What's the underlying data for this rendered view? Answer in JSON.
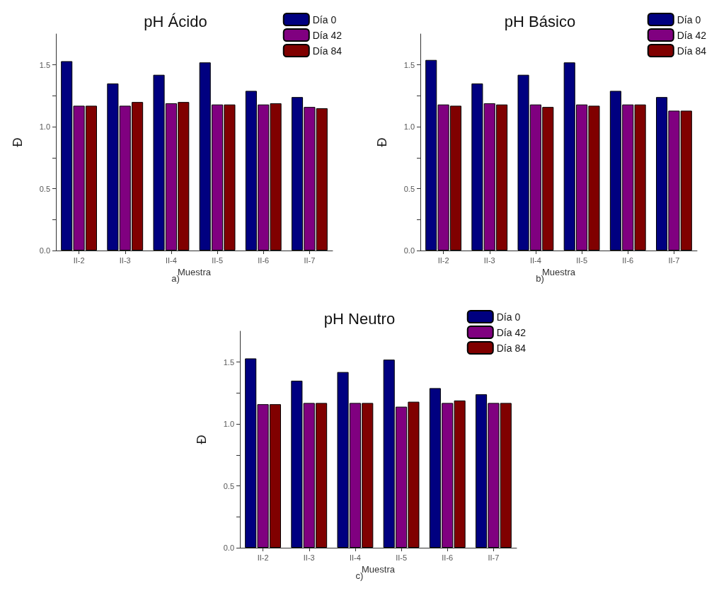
{
  "chart_data": [
    {
      "type": "bar",
      "title": "pH Ácido",
      "xlabel": "Muestra",
      "ylabel": "Đ",
      "annotations": [
        "a)"
      ],
      "categories": [
        "II-2",
        "II-3",
        "II-4",
        "II-5",
        "II-6",
        "II-7"
      ],
      "ylim": [
        0,
        1.75
      ],
      "yticks": [
        {
          "value": 0,
          "label": "0.0"
        },
        {
          "value": 0.25,
          "label": null
        },
        {
          "value": 0.5,
          "label": "0.5"
        },
        {
          "value": 0.75,
          "label": null
        },
        {
          "value": 1,
          "label": "1.0"
        },
        {
          "value": 1.25,
          "label": null
        },
        {
          "value": 1.5,
          "label": "1.5"
        }
      ],
      "grid": false,
      "legend": "top right",
      "series": [
        {
          "name": "Día 0",
          "color": "#000080",
          "values": [
            1.53,
            1.35,
            1.42,
            1.52,
            1.29,
            1.24
          ]
        },
        {
          "name": "Día 42",
          "color": "#800080",
          "values": [
            1.17,
            1.17,
            1.19,
            1.18,
            1.18,
            1.16
          ]
        },
        {
          "name": "Día 84",
          "color": "#800000",
          "values": [
            1.17,
            1.2,
            1.2,
            1.18,
            1.19,
            1.15
          ]
        }
      ]
    },
    {
      "type": "bar",
      "title": "pH Básico",
      "xlabel": "Muestra",
      "ylabel": "Đ",
      "annotations": [
        "b)"
      ],
      "categories": [
        "II-2",
        "II-3",
        "II-4",
        "II-5",
        "II-6",
        "II-7"
      ],
      "ylim": [
        0,
        1.75
      ],
      "yticks": [
        {
          "value": 0,
          "label": "0.0"
        },
        {
          "value": 0.25,
          "label": null
        },
        {
          "value": 0.5,
          "label": "0.5"
        },
        {
          "value": 0.75,
          "label": null
        },
        {
          "value": 1,
          "label": "1.0"
        },
        {
          "value": 1.25,
          "label": null
        },
        {
          "value": 1.5,
          "label": "1.5"
        }
      ],
      "grid": false,
      "legend": "top right",
      "series": [
        {
          "name": "Día 0",
          "color": "#000080",
          "values": [
            1.54,
            1.35,
            1.42,
            1.52,
            1.29,
            1.24
          ]
        },
        {
          "name": "Día 42",
          "color": "#800080",
          "values": [
            1.18,
            1.19,
            1.18,
            1.18,
            1.18,
            1.13
          ]
        },
        {
          "name": "Día 84",
          "color": "#800000",
          "values": [
            1.17,
            1.18,
            1.16,
            1.17,
            1.18,
            1.13
          ]
        }
      ]
    },
    {
      "type": "bar",
      "title": "pH Neutro",
      "xlabel": "Muestra",
      "ylabel": "Đ",
      "annotations": [
        "c)"
      ],
      "categories": [
        "II-2",
        "II-3",
        "II-4",
        "II-5",
        "II-6",
        "II-7"
      ],
      "ylim": [
        0,
        1.75
      ],
      "yticks": [
        {
          "value": 0,
          "label": "0.0"
        },
        {
          "value": 0.25,
          "label": null
        },
        {
          "value": 0.5,
          "label": "0.5"
        },
        {
          "value": 0.75,
          "label": null
        },
        {
          "value": 1,
          "label": "1.0"
        },
        {
          "value": 1.25,
          "label": null
        },
        {
          "value": 1.5,
          "label": "1.5"
        }
      ],
      "grid": false,
      "legend": "top right",
      "series": [
        {
          "name": "Día 0",
          "color": "#000080",
          "values": [
            1.53,
            1.35,
            1.42,
            1.52,
            1.29,
            1.24
          ]
        },
        {
          "name": "Día 42",
          "color": "#800080",
          "values": [
            1.16,
            1.17,
            1.17,
            1.14,
            1.17,
            1.17
          ]
        },
        {
          "name": "Día 84",
          "color": "#800000",
          "values": [
            1.16,
            1.17,
            1.17,
            1.18,
            1.19,
            1.17
          ]
        }
      ]
    }
  ]
}
